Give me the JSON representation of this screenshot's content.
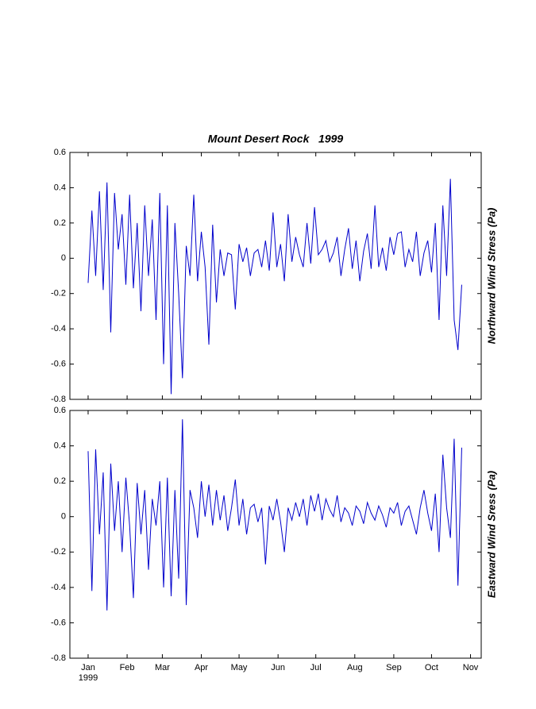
{
  "chart_data": [
    {
      "type": "line",
      "title": "Mount Desert Rock   1999",
      "y_label": "Northward Wind Stress (Pa)",
      "x": [
        0,
        3,
        6,
        9,
        12,
        15,
        18,
        21,
        24,
        27,
        30,
        33,
        36,
        39,
        42,
        45,
        48,
        51,
        54,
        57,
        60,
        63,
        66,
        69,
        72,
        75,
        78,
        81,
        84,
        87,
        90,
        93,
        96,
        99,
        102,
        105,
        108,
        111,
        114,
        117,
        120,
        123,
        126,
        129,
        132,
        135,
        138,
        141,
        144,
        147,
        150,
        153,
        156,
        159,
        162,
        165,
        168,
        171,
        174,
        177,
        180,
        183,
        186,
        189,
        192,
        195,
        198,
        201,
        204,
        207,
        210,
        213,
        216,
        219,
        222,
        225,
        228,
        231,
        234,
        237,
        240,
        243,
        246,
        249,
        252,
        255,
        258,
        261,
        264,
        267,
        270,
        273,
        276,
        279,
        282,
        285,
        288,
        291,
        294,
        297
      ],
      "series": [
        {
          "color": "#0000cc",
          "values": [
            -0.14,
            0.27,
            -0.1,
            0.38,
            -0.18,
            0.43,
            -0.42,
            0.37,
            0.05,
            0.25,
            -0.15,
            0.36,
            -0.17,
            0.2,
            -0.3,
            0.3,
            -0.1,
            0.22,
            -0.35,
            0.37,
            -0.6,
            0.3,
            -0.77,
            0.2,
            -0.2,
            -0.68,
            0.07,
            -0.1,
            0.36,
            -0.13,
            0.15,
            -0.05,
            -0.49,
            0.19,
            -0.25,
            0.05,
            -0.1,
            0.03,
            0.02,
            -0.29,
            0.08,
            -0.02,
            0.06,
            -0.1,
            0.03,
            0.05,
            -0.05,
            0.1,
            -0.07,
            0.26,
            -0.05,
            0.08,
            -0.13,
            0.25,
            -0.02,
            0.12,
            0.02,
            -0.05,
            0.2,
            -0.03,
            0.29,
            0.02,
            0.05,
            0.1,
            -0.02,
            0.03,
            0.12,
            -0.1,
            0.05,
            0.17,
            -0.06,
            0.1,
            -0.13,
            0.04,
            0.14,
            -0.06,
            0.3,
            -0.05,
            0.06,
            -0.07,
            0.12,
            0.02,
            0.14,
            0.15,
            -0.05,
            0.05,
            -0.02,
            0.15,
            -0.1,
            0.03,
            0.1,
            -0.08,
            0.2,
            -0.35,
            0.3,
            -0.1,
            0.45,
            -0.35,
            -0.52,
            -0.15
          ]
        }
      ],
      "xlim": [
        -14.5,
        312.5
      ],
      "xticks": [
        0,
        31,
        59,
        90,
        120,
        151,
        181,
        212,
        243,
        273,
        304
      ],
      "ylim": [
        -0.8,
        0.6
      ],
      "yticks": [
        0.6,
        0.4,
        0.2,
        0,
        -0.2,
        -0.4,
        -0.6,
        -0.8
      ],
      "grid": false
    },
    {
      "type": "line",
      "y_label": "Eastward Wind Sress (Pa)",
      "year_label": "1999",
      "x": [
        0,
        3,
        6,
        9,
        12,
        15,
        18,
        21,
        24,
        27,
        30,
        33,
        36,
        39,
        42,
        45,
        48,
        51,
        54,
        57,
        60,
        63,
        66,
        69,
        72,
        75,
        78,
        81,
        84,
        87,
        90,
        93,
        96,
        99,
        102,
        105,
        108,
        111,
        114,
        117,
        120,
        123,
        126,
        129,
        132,
        135,
        138,
        141,
        144,
        147,
        150,
        153,
        156,
        159,
        162,
        165,
        168,
        171,
        174,
        177,
        180,
        183,
        186,
        189,
        192,
        195,
        198,
        201,
        204,
        207,
        210,
        213,
        216,
        219,
        222,
        225,
        228,
        231,
        234,
        237,
        240,
        243,
        246,
        249,
        252,
        255,
        258,
        261,
        264,
        267,
        270,
        273,
        276,
        279,
        282,
        285,
        288,
        291,
        294,
        297
      ],
      "series": [
        {
          "color": "#0000cc",
          "values": [
            0.37,
            -0.42,
            0.38,
            -0.1,
            0.25,
            -0.53,
            0.3,
            -0.08,
            0.2,
            -0.2,
            0.22,
            -0.05,
            -0.46,
            0.19,
            -0.1,
            0.15,
            -0.3,
            0.1,
            -0.05,
            0.2,
            -0.4,
            0.22,
            -0.45,
            0.15,
            -0.35,
            0.55,
            -0.5,
            0.15,
            0.05,
            -0.12,
            0.2,
            0,
            0.18,
            -0.05,
            0.15,
            -0.02,
            0.12,
            -0.08,
            0.05,
            0.21,
            -0.05,
            0.1,
            -0.1,
            0.05,
            0.07,
            -0.03,
            0.05,
            -0.27,
            0.06,
            -0.02,
            0.1,
            -0.03,
            -0.2,
            0.05,
            -0.02,
            0.08,
            0,
            0.1,
            -0.05,
            0.12,
            0.03,
            0.13,
            -0.02,
            0.1,
            0.04,
            0,
            0.12,
            -0.03,
            0.05,
            0.02,
            -0.05,
            0.06,
            0.03,
            -0.04,
            0.08,
            0.02,
            -0.02,
            0.06,
            0.01,
            -0.06,
            0.05,
            0.02,
            0.08,
            -0.05,
            0.03,
            0.06,
            -0.02,
            -0.1,
            0.05,
            0.15,
            0.02,
            -0.08,
            0.13,
            -0.2,
            0.35,
            0.05,
            -0.12,
            0.44,
            -0.39,
            0.39
          ]
        }
      ],
      "xlim": [
        -14.5,
        312.5
      ],
      "xticks": [
        {
          "value": 0,
          "label": "Jan"
        },
        {
          "value": 31,
          "label": "Feb"
        },
        {
          "value": 59,
          "label": "Mar"
        },
        {
          "value": 90,
          "label": "Apr"
        },
        {
          "value": 120,
          "label": "May"
        },
        {
          "value": 151,
          "label": "Jun"
        },
        {
          "value": 181,
          "label": "Jul"
        },
        {
          "value": 212,
          "label": "Aug"
        },
        {
          "value": 243,
          "label": "Sep"
        },
        {
          "value": 273,
          "label": "Oct"
        },
        {
          "value": 304,
          "label": "Nov"
        }
      ],
      "ylim": [
        -0.8,
        0.6
      ],
      "yticks": [
        0.6,
        0.4,
        0.2,
        0,
        -0.2,
        -0.4,
        -0.6,
        -0.8
      ],
      "grid": false
    }
  ]
}
